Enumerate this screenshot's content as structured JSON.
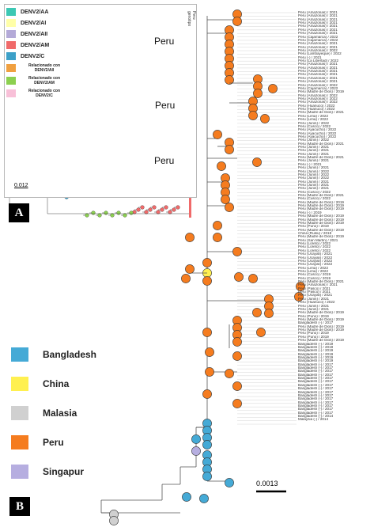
{
  "panel_tags": {
    "a": "A",
    "b": "B"
  },
  "panel_a": {
    "legend": [
      {
        "label": "DENV2/AA",
        "color": "#3cc8b4"
      },
      {
        "label": "DENV2/AI",
        "color": "#ffffa8"
      },
      {
        "label": "DENV2/AII",
        "color": "#b4aad8"
      },
      {
        "label": "DENV2/AM",
        "color": "#f06a6a"
      },
      {
        "label": "DENV2/C",
        "color": "#3ca0c8"
      },
      {
        "label": "Relacionado con DENV2/AII",
        "color": "#f0a040"
      },
      {
        "label": "Relacionado con DENV2/AM",
        "color": "#8cd050"
      },
      {
        "label": "Relacionado con DENV2/C",
        "color": "#f8c0d8"
      }
    ],
    "scale_label": "0.012",
    "column_headers": [
      "genotipo",
      "Peru"
    ],
    "peru_labels": [
      "Peru",
      "Peru",
      "Peru"
    ]
  },
  "panel_b": {
    "legend": [
      {
        "label": "Bangladesh",
        "color": "#45aad6"
      },
      {
        "label": "China",
        "color": "#fff050"
      },
      {
        "label": "Malasia",
        "color": "#d0d0d0"
      },
      {
        "label": "Peru",
        "color": "#f57c1f"
      },
      {
        "label": "Singapur",
        "color": "#b6aee0"
      }
    ],
    "scale_label": "0.0013",
    "tip_labels": [
      "Peru (Amazonas) / 2021",
      "Peru (Amazonas) / 2021",
      "Peru (Amazonas) / 2021",
      "Peru (Amazonas) / 2021",
      "Peru (Amazonas) / 2021",
      "Peru (Amazonas) / 2021",
      "Peru (Amazonas) / 2021",
      "Peru (Cajamarca) / 2022",
      "Peru (Cajamarca) / 2022",
      "Peru (Amazonas) / 2021",
      "Peru (Amazonas) / 2021",
      "Peru (Amazonas) / 2022",
      "Peru (Lambayeque) / 2022",
      "Peru (-) / 2021",
      "Peru (La Libertad) / 2022",
      "Peru (Amazonas) / 2021",
      "Peru (Amazonas) / 2021",
      "Peru (Amazonas) / 2021",
      "Peru (Amazonas) / 2021",
      "Peru (Amazonas) / 2021",
      "Peru (Amazonas) / 2021",
      "Peru (Amazonas) / 2022",
      "Peru (Cajamarca) / 2022",
      "Peru (Madre de Dios) / 2019",
      "Peru (Amazonas) / 2022",
      "Peru (Amazonas) / 2022",
      "Peru (Amazonas) / 2022",
      "Peru (Huanuco) / 2022",
      "Peru (Huanuco) / 2022",
      "Peru (Madre de Dios) / 2021",
      "Peru (Lima) / 2022",
      "Peru (Lima) / 2022",
      "Peru (Junin) / 2022",
      "Peru (Cusco) / 2022",
      "Peru (Ayacucho) / 2022",
      "Peru (Ayacucho) / 2022",
      "Peru (Ayacucho) / 2022",
      "Peru (Junin) / 2022",
      "Peru (Madre de Dios) / 2021",
      "Peru (Junin) / 2021",
      "Peru (Junin) / 2021",
      "Peru (Junin) / 2021",
      "Peru (Madre de Dios) / 2021",
      "Peru (Junin) / 2021",
      "Peru (-) / 2021",
      "Peru (Junin) / 2021",
      "Peru (Junin) / 2022",
      "Peru (Junin) / 2022",
      "Peru (Junin) / 2022",
      "Peru (Junin) / 2021",
      "Peru (Junin) / 2021",
      "Peru (Junin) / 2021",
      "Peru (Cusco) / 2022",
      "Peru (Madre de Dios) / 2021",
      "Peru (Cusco) / 2022",
      "Peru (Madre de Dios) / 2019",
      "Peru (Madre de Dios) / 2019",
      "Peru (Madre de Dios) / 2019",
      "Peru (-) / 2019",
      "Peru (Madre de Dios) / 2019",
      "Peru (Madre de Dios) / 2019",
      "Peru (Madre de Dios) / 2019",
      "Peru (Puno) / 2019",
      "Peru (Madre de Dios) / 2019",
      "China (Ruiku) / 2018",
      "Peru (Madre de Dios) / 2019",
      "Peru (San Martin) / 2021",
      "Peru (Loreto) / 2022",
      "Peru (Loreto) / 2022",
      "Peru (Loreto) / 2022",
      "Peru (Ucayali) / 2021",
      "Peru (Ucayali) / 2022",
      "Peru (Ucayali) / 2022",
      "Peru (Ucayali) / 2022",
      "Peru (Lima) / 2022",
      "Peru (Lima) / 2022",
      "Peru (Cusco) / 2019",
      "Peru (Cusco) / 2019",
      "Peru (Madre de Dios) / 2021",
      "Peru (Amazonas) / 2021",
      "Peru (Pasco) / 2021",
      "Peru (Pasco) / 2021",
      "Peru (Ucayali) / 2021",
      "Peru (Junin) / 2021",
      "Peru (Huanuco) / 2022",
      "Peru (Junin) / 2021",
      "Peru (Junin) / 2021",
      "Peru (Madre de Dios) / 2019",
      "Peru (Puno) / 2019",
      "Peru (Madre de Dios) / 2019",
      "Bangladesh (-) / 2017",
      "Peru (Madre de Dios) / 2019",
      "Peru (Madre de Dios) / 2019",
      "Peru (Puno) / 2019",
      "Peru (Puno) / 2019",
      "Peru (Madre de Dios) / 2019",
      "Bangladesh (-) / 2019",
      "Bangladesh (-) / 2019",
      "Bangladesh (-) / 2019",
      "Bangladesh (-) / 2019",
      "Bangladesh (-) / 2019",
      "Bangladesh (-) / 2019",
      "Bangladesh (-) / 2017",
      "Bangladesh (-) / 2017",
      "Bangladesh (-) / 2017",
      "Bangladesh (-) / 2017",
      "Bangladesh (-) / 2017",
      "Bangladesh (-) / 2017",
      "Bangladesh (-) / 2017",
      "Bangladesh (-) / 2017",
      "Bangladesh (-) / 2017",
      "Bangladesh (-) / 2017",
      "Bangladesh (-) / 2017",
      "Bangladesh (-) / 2017",
      "Bangladesh (-) / 2017",
      "Bangladesh (-) / 2017",
      "Bangladesh (-) / 2017",
      "Bangladesh (-) / 2014",
      "Malaysia (-) / 2014"
    ]
  }
}
